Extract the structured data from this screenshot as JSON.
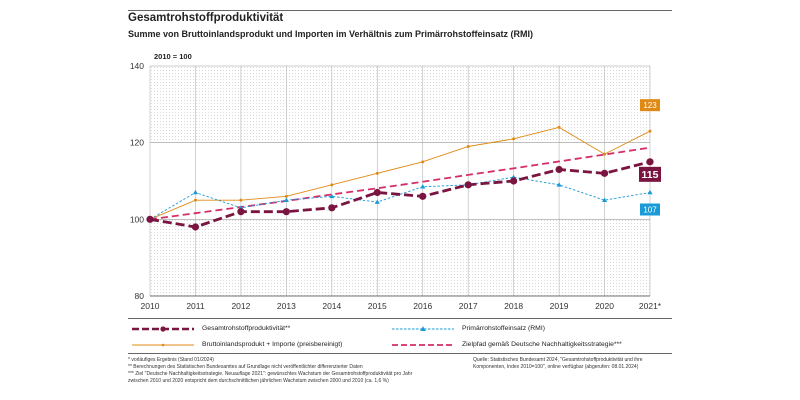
{
  "header": {
    "title": "Gesamtrohstoffproduktivität",
    "subtitle": "Summe von Bruttoinlandsprodukt und Importen im Verhältnis zum Primärrohstoffeinsatz (RMI)",
    "index_note": "2010 = 100"
  },
  "chart_data": {
    "type": "line",
    "x": [
      "2010",
      "2011",
      "2012",
      "2013",
      "2014",
      "2015",
      "2016",
      "2017",
      "2018",
      "2019",
      "2020",
      "2021*"
    ],
    "ylim": [
      80,
      140
    ],
    "yticks": [
      80,
      100,
      120,
      140
    ],
    "grid": true,
    "series": [
      {
        "key": "grp",
        "name": "Gesamtrohstoffproduktivität**",
        "color": "#7a1440",
        "style": "dashed-bold",
        "values": [
          100,
          98,
          102,
          102,
          103,
          107,
          106,
          109,
          110,
          113,
          112,
          115
        ],
        "end_label": "115"
      },
      {
        "key": "rmi",
        "name": "Primärrohstoffeinsatz (RMI)",
        "color": "#1a9bd7",
        "style": "dashed-thin",
        "values": [
          100,
          107,
          103,
          105,
          106,
          104.5,
          108.5,
          109,
          111,
          109,
          105,
          107
        ],
        "end_label": "107"
      },
      {
        "key": "bip",
        "name": "Bruttoinlandsprodukt + Importe (preisbereinigt)",
        "color": "#e08a16",
        "style": "solid-thin",
        "values": [
          100,
          105,
          105,
          106,
          109,
          112,
          115,
          119,
          121,
          124,
          117,
          123
        ],
        "end_label": "123"
      },
      {
        "key": "ziel",
        "name": "Zielpfad gemäß Deutsche Nachhaltigkeitsstrategie***",
        "color": "#d42d6a",
        "style": "dashed",
        "values": [
          100,
          101.6,
          103.2,
          104.8,
          106.5,
          108.1,
          109.8,
          111.6,
          113.3,
          115.1,
          116.9,
          118.7
        ]
      }
    ]
  },
  "legend": {
    "grp": "Gesamtrohstoffproduktivität**",
    "rmi": "Primärrohstoffeinsatz (RMI)",
    "bip": "Bruttoinlandsprodukt + Importe (preisbereinigt)",
    "ziel": "Zielpfad gemäß Deutsche Nachhaltigkeitsstrategie***"
  },
  "footnotes": {
    "f1": "* vorläufiges Ergebnis (Stand 01/2024)",
    "f2": "** Berechnungen des Statistischen Bundesamtes auf Grundlage nicht veröffentlichter differenzierter Daten",
    "f3": "*** Ziel \"Deutsche Nachhaltigkeitsstrategie. Neuauflage 2021\": gewünschtes Wachstum der Gesamtrohstoffproduktivität pro Jahr zwischen 2010 und 2020 entspricht dem durchschnittlichen jährlichen Wachstum zwischen 2000 und 2010 (ca. 1,6 %)"
  },
  "source": "Quelle: Statistisches Bundesamt 2024, \"Gesamtrohstoffproduktivität und ihre Komponenten, Index 2010=100\", online verfügbar (abgerufen: 08.01.2024)"
}
